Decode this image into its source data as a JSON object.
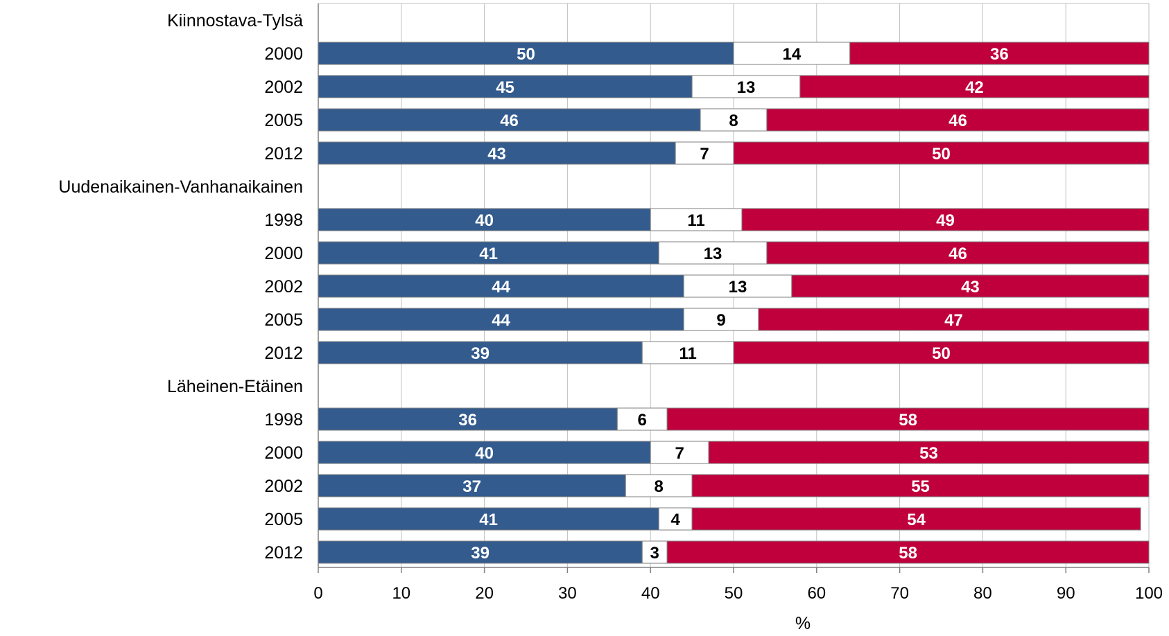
{
  "chart_data": {
    "type": "bar",
    "orientation": "horizontal",
    "stacked": true,
    "xlabel": "%",
    "xlim": [
      0,
      100
    ],
    "xticks": [
      0,
      10,
      20,
      30,
      40,
      50,
      60,
      70,
      80,
      90,
      100
    ],
    "grid": true,
    "legend": "none",
    "colors": [
      "#335b8e",
      "#ffffff",
      "#c0003c"
    ],
    "groups": [
      {
        "label": "Kiinnostava-Tylsä",
        "rows": [
          {
            "year": "2000",
            "values": [
              50,
              14,
              36
            ]
          },
          {
            "year": "2002",
            "values": [
              45,
              13,
              42
            ]
          },
          {
            "year": "2005",
            "values": [
              46,
              8,
              46
            ]
          },
          {
            "year": "2012",
            "values": [
              43,
              7,
              50
            ]
          }
        ]
      },
      {
        "label": "Uudenaikainen-Vanhanaikainen",
        "rows": [
          {
            "year": "1998",
            "values": [
              40,
              11,
              49
            ]
          },
          {
            "year": "2000",
            "values": [
              41,
              13,
              46
            ]
          },
          {
            "year": "2002",
            "values": [
              44,
              13,
              43
            ]
          },
          {
            "year": "2005",
            "values": [
              44,
              9,
              47
            ]
          },
          {
            "year": "2012",
            "values": [
              39,
              11,
              50
            ]
          }
        ]
      },
      {
        "label": "Läheinen-Etäinen",
        "rows": [
          {
            "year": "1998",
            "values": [
              36,
              6,
              58
            ]
          },
          {
            "year": "2000",
            "values": [
              40,
              7,
              53
            ]
          },
          {
            "year": "2002",
            "values": [
              37,
              8,
              55
            ]
          },
          {
            "year": "2005",
            "values": [
              41,
              4,
              54
            ]
          },
          {
            "year": "2012",
            "values": [
              39,
              3,
              58
            ]
          }
        ]
      }
    ]
  }
}
